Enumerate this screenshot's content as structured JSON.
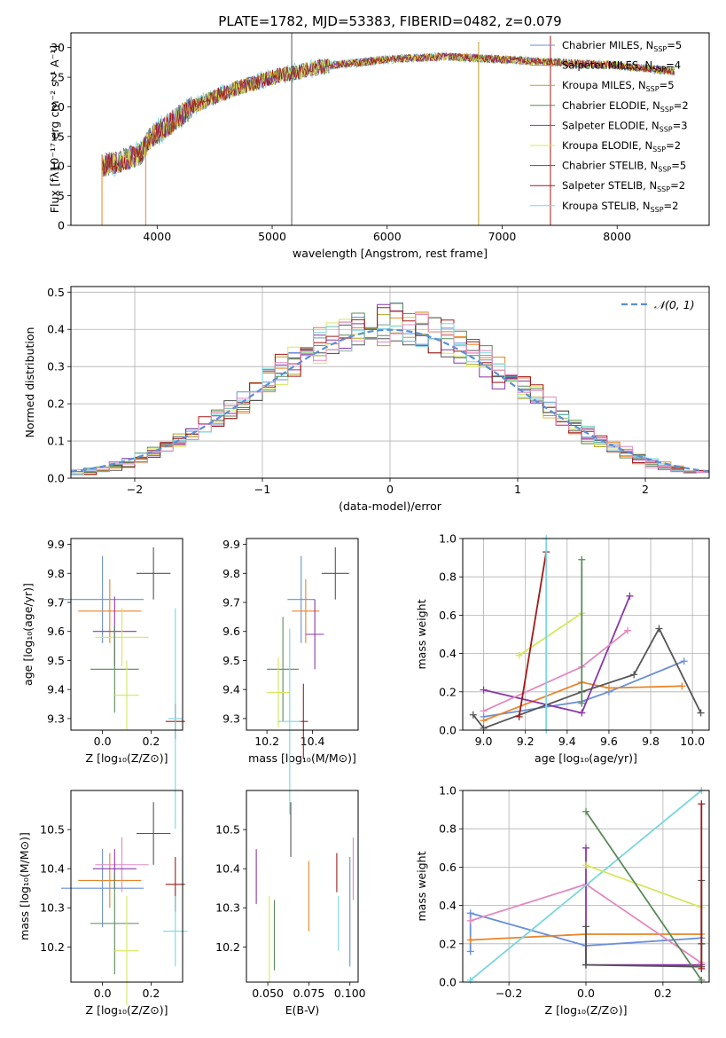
{
  "figure": {
    "title": "PLATE=1782, MJD=53383, FIBERID=0482, z=0.079"
  },
  "colors": {
    "models": [
      "#6a8fd6",
      "#e8842a",
      "#b8a028",
      "#5a8a5a",
      "#8a36a8",
      "#d4e85a",
      "#555555",
      "#a01a1a",
      "#7ad6e0"
    ],
    "normal_curve": "#5b8fd6",
    "grid": "#b0b0b0"
  },
  "chart_data": [
    {
      "id": "spectrum",
      "type": "line",
      "xlabel": "wavelength [Angstrom, rest frame]",
      "ylabel": "Flux [fλ10⁻¹⁷ erg cm⁻² s⁻¹ A⁻¹]",
      "xlim": [
        3250,
        8800
      ],
      "ylim": [
        0,
        32.5
      ],
      "xticks": [
        4000,
        5000,
        6000,
        7000,
        8000
      ],
      "yticks": [
        0,
        5,
        10,
        15,
        20,
        25,
        30
      ],
      "grid": false,
      "legend_position": "right",
      "legend": [
        {
          "model": "Chabrier MILES",
          "nssp": "5"
        },
        {
          "model": "Salpeter MILES",
          "nssp": "4"
        },
        {
          "model": "Kroupa MILES",
          "nssp": "5"
        },
        {
          "model": "Chabrier ELODIE",
          "nssp": "2"
        },
        {
          "model": "Salpeter ELODIE",
          "nssp": "3"
        },
        {
          "model": "Kroupa ELODIE",
          "nssp": "2"
        },
        {
          "model": "Chabrier STELIB",
          "nssp": "5"
        },
        {
          "model": "Salpeter STELIB",
          "nssp": "2"
        },
        {
          "model": "Kroupa STELIB",
          "nssp": "2"
        }
      ],
      "continuum": [
        {
          "x": 3520,
          "y": 10
        },
        {
          "x": 3700,
          "y": 11
        },
        {
          "x": 3850,
          "y": 12
        },
        {
          "x": 3950,
          "y": 15
        },
        {
          "x": 4100,
          "y": 17
        },
        {
          "x": 4300,
          "y": 20
        },
        {
          "x": 4600,
          "y": 22.5
        },
        {
          "x": 5000,
          "y": 25
        },
        {
          "x": 5500,
          "y": 27
        },
        {
          "x": 6000,
          "y": 28
        },
        {
          "x": 6500,
          "y": 28.5
        },
        {
          "x": 7000,
          "y": 28
        },
        {
          "x": 7500,
          "y": 27.5
        },
        {
          "x": 8000,
          "y": 27
        },
        {
          "x": 8500,
          "y": 26
        }
      ],
      "spikes": [
        {
          "x": 3520,
          "y_from": 0,
          "y_to": 12
        },
        {
          "x": 3900,
          "y_from": 0,
          "y_to": 14
        },
        {
          "x": 5170,
          "y_from": 0,
          "y_to": 32.5
        },
        {
          "x": 6795,
          "y_from": 0,
          "y_to": 31
        },
        {
          "x": 7420,
          "y_from": 0,
          "y_to": 32
        }
      ]
    },
    {
      "id": "residuals",
      "type": "bar",
      "xlabel": "(data-model)/error",
      "ylabel": "Normed distribution",
      "xlim": [
        -2.5,
        2.5
      ],
      "ylim": [
        0,
        0.515
      ],
      "xticks": [
        -2,
        -1,
        0,
        1,
        2
      ],
      "xticklabels": [
        "−2",
        "−1",
        "0",
        "1",
        "2"
      ],
      "yticks": [
        0.0,
        0.1,
        0.2,
        0.3,
        0.4,
        0.5
      ],
      "grid": true,
      "legend_position": "top-right",
      "legend": "𝒩(0, 1)",
      "bin_width": 0.1,
      "bin_start": -2.5
    },
    {
      "id": "age_vs_Z",
      "type": "scatter",
      "xlabel": "Z [log₁₀(Z/Z⊙)]",
      "ylabel": "age  [log₁₀(age/yr)]",
      "xlim": [
        -0.13,
        0.33
      ],
      "ylim": [
        9.26,
        9.92
      ],
      "xticks": [
        0.0,
        0.2
      ],
      "yticks": [
        9.3,
        9.4,
        9.5,
        9.6,
        9.7,
        9.8,
        9.9
      ],
      "points": [
        {
          "x": 0.0,
          "y": 9.71,
          "xerr": 0.17,
          "yerr": 0.15,
          "c": 0
        },
        {
          "x": 0.03,
          "y": 9.67,
          "xerr": 0.13,
          "yerr": 0.11,
          "c": 1
        },
        {
          "x": 0.05,
          "y": 9.6,
          "xerr": 0.09,
          "yerr": 0.12,
          "c": 4
        },
        {
          "x": 0.08,
          "y": 9.58,
          "xerr": 0.11,
          "yerr": 0.1,
          "c": 5
        },
        {
          "x": 0.05,
          "y": 9.47,
          "xerr": 0.1,
          "yerr": 0.15,
          "c": 3
        },
        {
          "x": 0.1,
          "y": 9.38,
          "xerr": 0.05,
          "yerr": 0.12,
          "c": 5
        },
        {
          "x": 0.21,
          "y": 9.8,
          "xerr": 0.07,
          "yerr": 0.09,
          "c": 6
        },
        {
          "x": 0.3,
          "y": 9.29,
          "xerr": 0.04,
          "yerr": 0.06,
          "c": 7
        },
        {
          "x": 0.3,
          "y": 9.3,
          "xerr": 0.03,
          "yerr": 0.38,
          "c": 8
        }
      ]
    },
    {
      "id": "age_vs_mass",
      "type": "scatter",
      "xlabel": "mass [log₁₀(M/M⊙)]",
      "ylabel": "",
      "xlim": [
        10.11,
        10.6
      ],
      "ylim": [
        9.26,
        9.92
      ],
      "xticks": [
        10.2,
        10.4
      ],
      "yticks": [
        9.3,
        9.4,
        9.5,
        9.6,
        9.7,
        9.8,
        9.9
      ],
      "points": [
        {
          "x": 10.35,
          "y": 9.71,
          "xerr": 0.06,
          "yerr": 0.15,
          "c": 0
        },
        {
          "x": 10.37,
          "y": 9.67,
          "xerr": 0.06,
          "yerr": 0.11,
          "c": 1
        },
        {
          "x": 10.41,
          "y": 9.59,
          "xerr": 0.04,
          "yerr": 0.12,
          "c": 4
        },
        {
          "x": 10.27,
          "y": 9.47,
          "xerr": 0.07,
          "yerr": 0.18,
          "c": 3
        },
        {
          "x": 10.25,
          "y": 9.39,
          "xerr": 0.05,
          "yerr": 0.12,
          "c": 5
        },
        {
          "x": 10.5,
          "y": 9.8,
          "xerr": 0.06,
          "yerr": 0.09,
          "c": 6
        },
        {
          "x": 10.36,
          "y": 9.29,
          "xerr": 0.02,
          "yerr": 0.13,
          "c": 7
        },
        {
          "x": 10.3,
          "y": 9.29,
          "xerr": 0.05,
          "yerr": 0.32,
          "c": 8
        }
      ]
    },
    {
      "id": "weight_vs_age",
      "type": "line",
      "xlabel": "age  [log₁₀(age/yr)]",
      "ylabel": "mass weight",
      "xlim": [
        8.9,
        10.08
      ],
      "ylim": [
        0,
        1
      ],
      "xticks": [
        9.0,
        9.2,
        9.4,
        9.6,
        9.8,
        10.0
      ],
      "yticks": [
        0.0,
        0.2,
        0.4,
        0.6,
        0.8,
        1.0
      ],
      "grid": true,
      "series": [
        {
          "c": 0,
          "x": [
            9.0,
            9.47,
            9.6,
            9.96
          ],
          "y": [
            0.07,
            0.15,
            0.2,
            0.36
          ]
        },
        {
          "c": 1,
          "x": [
            9.0,
            9.47,
            9.6,
            9.95
          ],
          "y": [
            0.05,
            0.25,
            0.22,
            0.23
          ]
        },
        {
          "c": 4,
          "x": [
            9.0,
            9.47,
            9.7
          ],
          "y": [
            0.21,
            0.09,
            0.7
          ]
        },
        {
          "c": 9,
          "x": [
            9.0,
            9.47,
            9.69
          ],
          "y": [
            0.1,
            0.33,
            0.52
          ]
        },
        {
          "c": 6,
          "x": [
            8.95,
            9.0,
            9.47,
            9.72,
            9.84,
            10.04
          ],
          "y": [
            0.08,
            0.01,
            0.2,
            0.29,
            0.53,
            0.09
          ]
        },
        {
          "c": 5,
          "x": [
            9.17,
            9.47
          ],
          "y": [
            0.39,
            0.61
          ]
        },
        {
          "c": 3,
          "x": [
            9.47,
            9.47
          ],
          "y": [
            0.14,
            0.89
          ]
        },
        {
          "c": 7,
          "x": [
            9.17,
            9.3
          ],
          "y": [
            0.07,
            0.93
          ]
        },
        {
          "c": 8,
          "x": [
            9.3,
            9.3
          ],
          "y": [
            0.0,
            1.0
          ]
        }
      ]
    },
    {
      "id": "mass_vs_Z",
      "type": "scatter",
      "xlabel": "Z [log₁₀(Z/Z⊙)]",
      "ylabel": "mass [log₁₀(M/M⊙)]",
      "xlim": [
        -0.13,
        0.33
      ],
      "ylim": [
        10.11,
        10.6
      ],
      "xticks": [
        0.0,
        0.2
      ],
      "yticks": [
        10.2,
        10.3,
        10.4,
        10.5
      ],
      "points": [
        {
          "x": 0.0,
          "y": 10.35,
          "xerr": 0.17,
          "yerr": 0.1,
          "c": 0
        },
        {
          "x": 0.03,
          "y": 10.37,
          "xerr": 0.13,
          "yerr": 0.07,
          "c": 1
        },
        {
          "x": 0.08,
          "y": 10.41,
          "xerr": 0.11,
          "yerr": 0.07,
          "c": 9
        },
        {
          "x": 0.05,
          "y": 10.4,
          "xerr": 0.09,
          "yerr": 0.05,
          "c": 4
        },
        {
          "x": 0.05,
          "y": 10.26,
          "xerr": 0.1,
          "yerr": 0.13,
          "c": 3
        },
        {
          "x": 0.1,
          "y": 10.19,
          "xerr": 0.05,
          "yerr": 0.14,
          "c": 5
        },
        {
          "x": 0.21,
          "y": 10.49,
          "xerr": 0.07,
          "yerr": 0.08,
          "c": 6
        },
        {
          "x": 0.3,
          "y": 10.36,
          "xerr": 0.04,
          "yerr": 0.07,
          "c": 7
        },
        {
          "x": 0.3,
          "y": 10.24,
          "xerr": 0.05,
          "yerr": 0.09,
          "c": 8
        }
      ]
    },
    {
      "id": "mass_vs_ebv",
      "type": "scatter",
      "xlabel": "E(B-V)",
      "ylabel": "",
      "xlim": [
        0.037,
        0.105
      ],
      "ylim": [
        10.11,
        10.6
      ],
      "xticks": [
        0.05,
        0.075,
        0.1
      ],
      "xticklabels": [
        "0.050",
        "0.075",
        "0.100"
      ],
      "yticks": [
        10.2,
        10.3,
        10.4,
        10.5
      ],
      "points": [
        {
          "x": 0.043,
          "y": 10.38,
          "yerr": 0.07,
          "c": 4
        },
        {
          "x": 0.051,
          "y": 10.22,
          "yerr": 0.11,
          "c": 5
        },
        {
          "x": 0.054,
          "y": 10.23,
          "yerr": 0.09,
          "c": 3
        },
        {
          "x": 0.064,
          "y": 10.5,
          "yerr": 0.07,
          "c": 6
        },
        {
          "x": 0.075,
          "y": 10.33,
          "yerr": 0.09,
          "c": 1
        },
        {
          "x": 0.092,
          "y": 10.39,
          "yerr": 0.05,
          "c": 7
        },
        {
          "x": 0.093,
          "y": 10.26,
          "yerr": 0.07,
          "c": 8
        },
        {
          "x": 0.1,
          "y": 10.29,
          "yerr": 0.14,
          "c": 0
        },
        {
          "x": 0.102,
          "y": 10.4,
          "yerr": 0.08,
          "c": 9
        }
      ]
    },
    {
      "id": "weight_vs_Z",
      "type": "line",
      "xlabel": "Z [log₁₀(Z/Z⊙)]",
      "ylabel": "mass weight",
      "xlim": [
        -0.32,
        0.32
      ],
      "ylim": [
        0,
        1
      ],
      "xticks": [
        -0.2,
        0.0,
        0.2
      ],
      "xticklabels": [
        "−0.2",
        "0.0",
        "0.2"
      ],
      "yticks": [
        0.0,
        0.2,
        0.4,
        0.6,
        0.8,
        1.0
      ],
      "grid": true,
      "series": [
        {
          "c": 0,
          "x": [
            -0.3,
            -0.3,
            0.0,
            0.3
          ],
          "y": [
            0.16,
            0.36,
            0.19,
            0.23
          ]
        },
        {
          "c": 1,
          "x": [
            -0.3,
            0.0,
            0.3
          ],
          "y": [
            0.22,
            0.25,
            0.25
          ]
        },
        {
          "c": 9,
          "x": [
            -0.3,
            0.0,
            0.3
          ],
          "y": [
            0.32,
            0.51,
            0.1
          ]
        },
        {
          "c": 4,
          "x": [
            0.0,
            0.0,
            0.3
          ],
          "y": [
            0.7,
            0.09,
            0.09
          ]
        },
        {
          "c": 8,
          "x": [
            -0.3,
            0.3
          ],
          "y": [
            0.01,
            1.0
          ]
        },
        {
          "c": 5,
          "x": [
            0.0,
            0.3
          ],
          "y": [
            0.61,
            0.39
          ]
        },
        {
          "c": 3,
          "x": [
            0.0,
            0.3
          ],
          "y": [
            0.89,
            0.01
          ]
        },
        {
          "c": 6,
          "x": [
            0.0,
            0.0,
            0.3,
            0.3,
            0.3
          ],
          "y": [
            0.29,
            0.09,
            0.08,
            0.53,
            0.2
          ]
        },
        {
          "c": 7,
          "x": [
            0.3,
            0.3
          ],
          "y": [
            0.07,
            0.93
          ]
        }
      ]
    }
  ]
}
